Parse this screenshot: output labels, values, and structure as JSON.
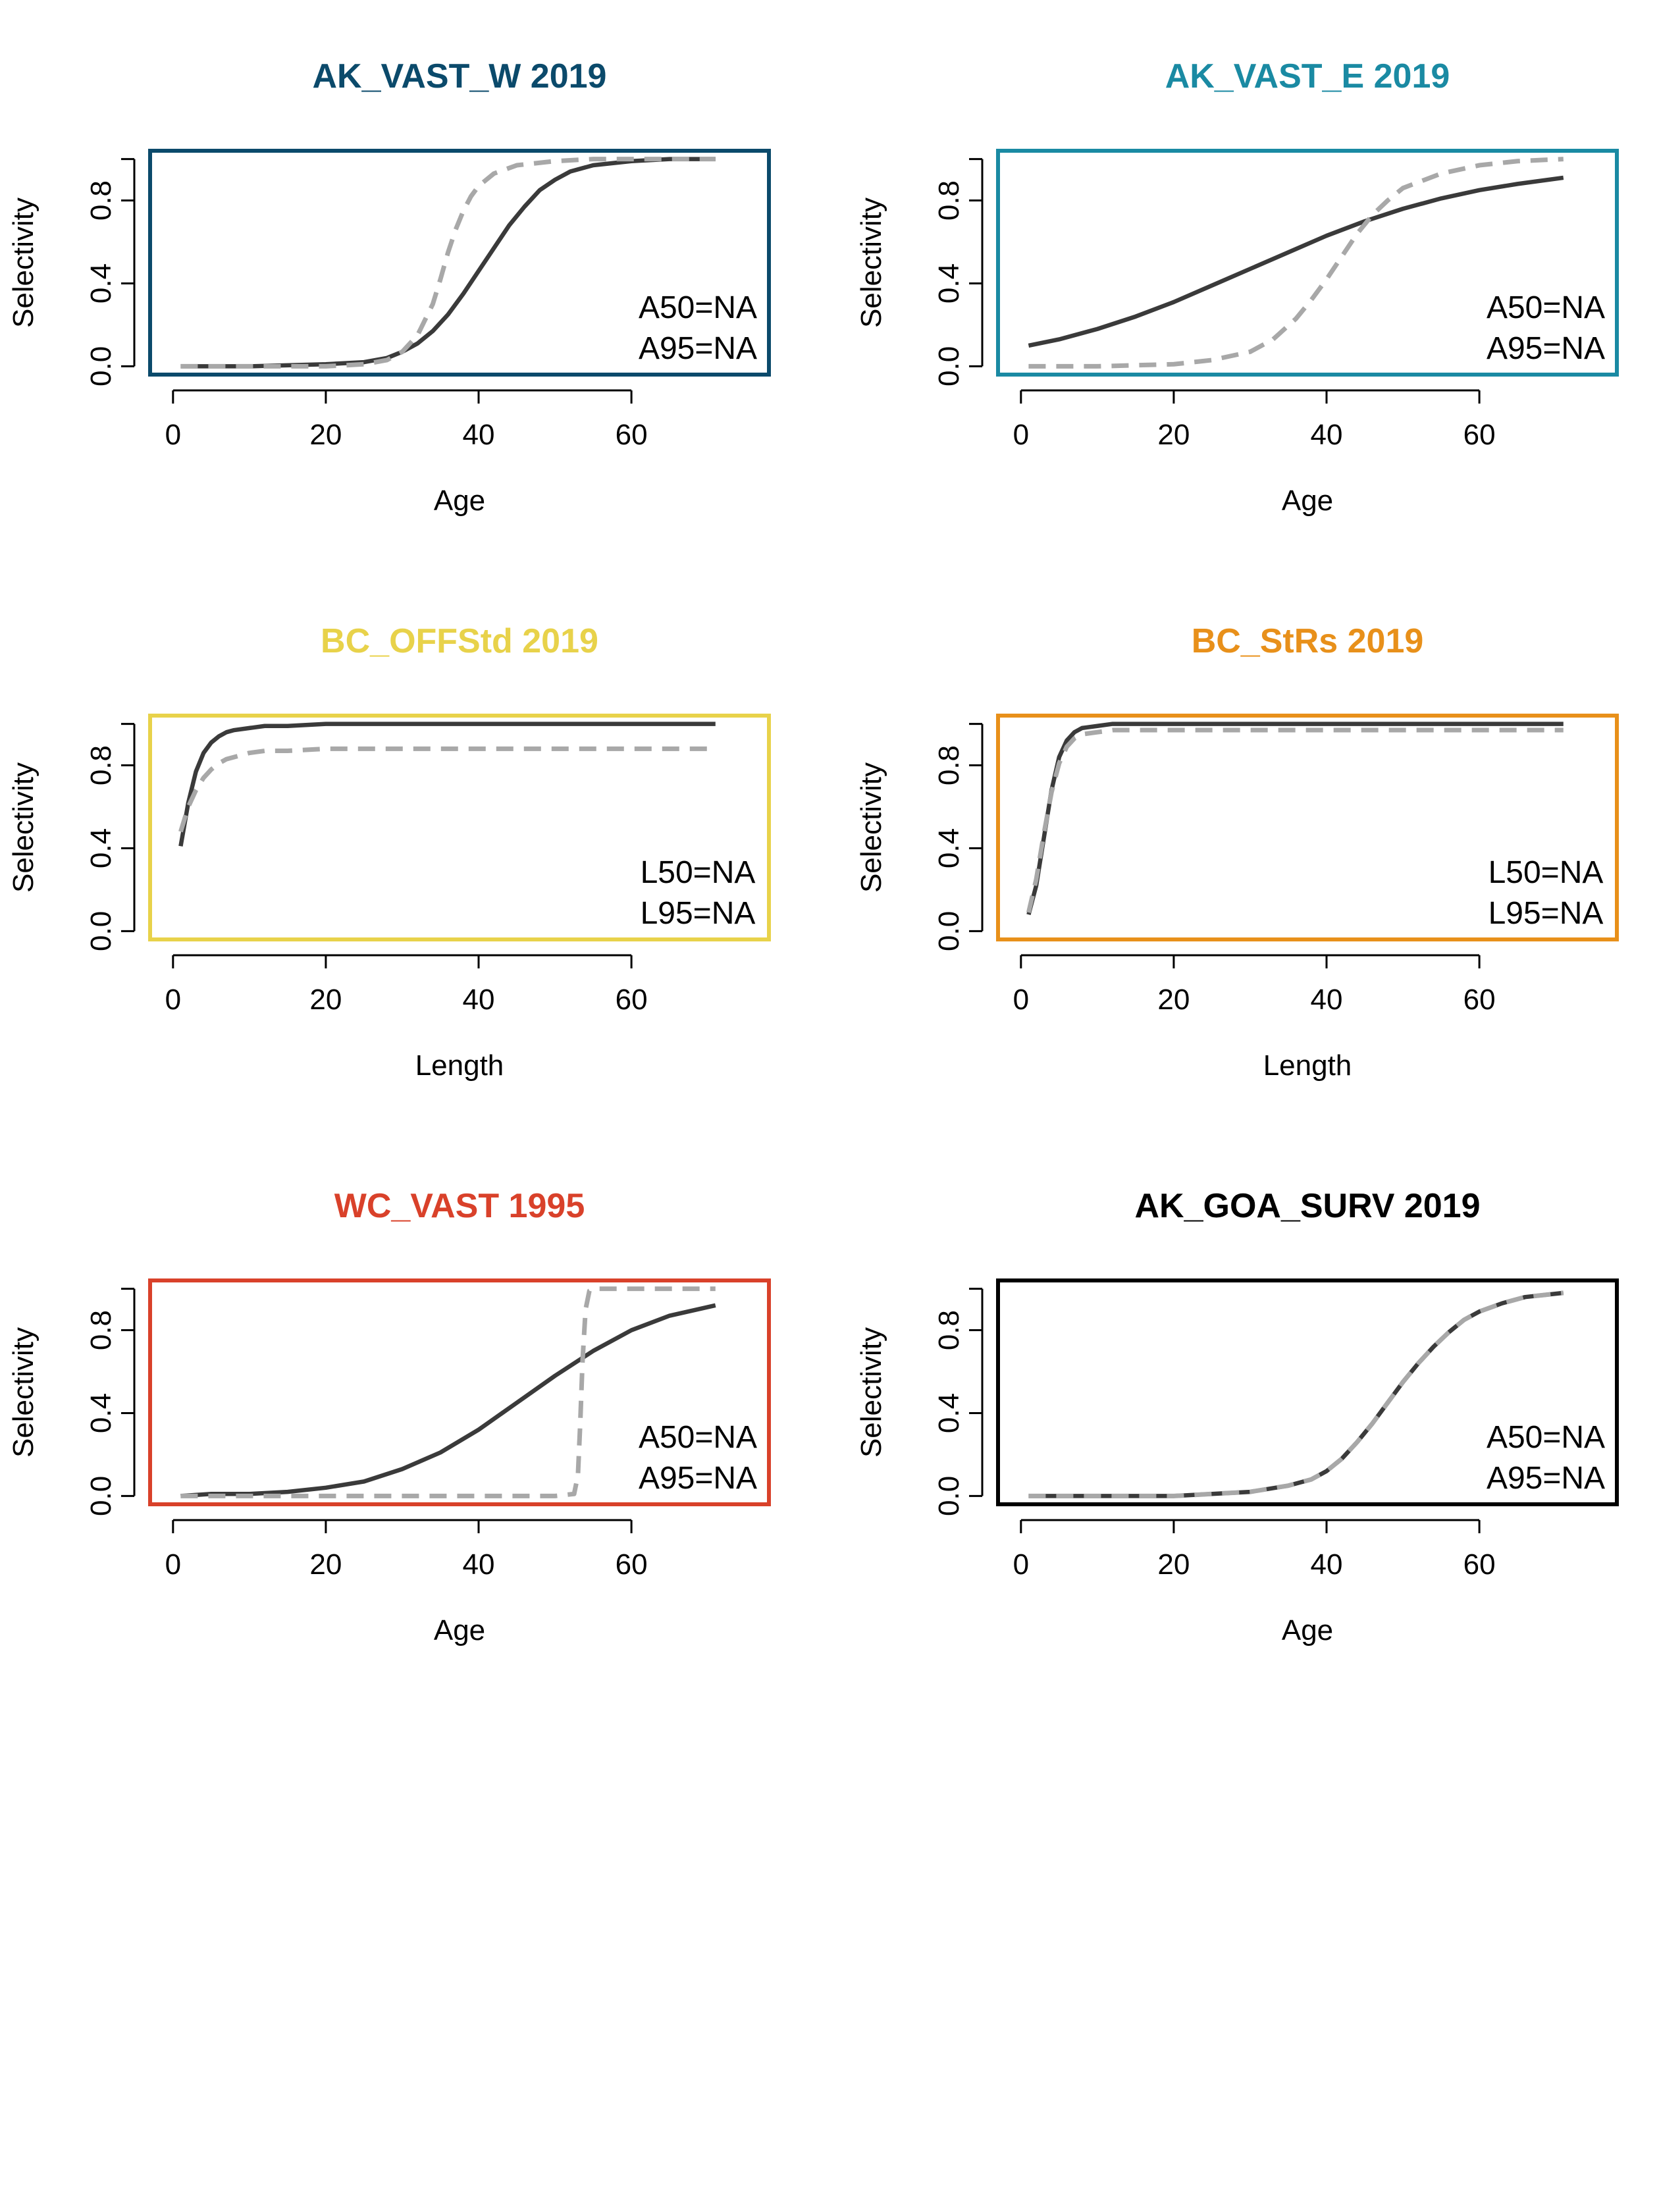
{
  "chart_data": [
    {
      "type": "line",
      "title": "AK_VAST_W 2019",
      "title_color": "#0b4a6b",
      "border_color": "#0b4a6b",
      "xlabel": "Age",
      "ylabel": "Selectivity",
      "xlim": [
        -3,
        78
      ],
      "ylim": [
        -0.04,
        1.04
      ],
      "xticks": [
        0,
        20,
        40,
        60
      ],
      "yticks": [
        0.0,
        0.4,
        0.8
      ],
      "xtick_labels": [
        "0",
        "20",
        "40",
        "60"
      ],
      "ytick_labels": [
        "0.0",
        "0.4",
        "0.8"
      ],
      "annotations": [
        "A50=NA",
        "A95=NA"
      ],
      "series": [
        {
          "style": "solid",
          "color": "#3a3a3a",
          "x": [
            1,
            10,
            20,
            25,
            28,
            30,
            32,
            34,
            36,
            38,
            40,
            42,
            44,
            46,
            48,
            50,
            52,
            55,
            60,
            65,
            71
          ],
          "y": [
            0.0,
            0.0,
            0.01,
            0.02,
            0.04,
            0.07,
            0.11,
            0.17,
            0.25,
            0.35,
            0.46,
            0.57,
            0.68,
            0.77,
            0.85,
            0.9,
            0.94,
            0.97,
            0.99,
            1.0,
            1.0
          ]
        },
        {
          "style": "dashed",
          "color": "#a8a8a8",
          "x": [
            1,
            10,
            20,
            25,
            28,
            30,
            32,
            34,
            35,
            36,
            37,
            38,
            39,
            40,
            42,
            45,
            50,
            55,
            60,
            71
          ],
          "y": [
            0.0,
            0.0,
            0.0,
            0.01,
            0.03,
            0.07,
            0.15,
            0.3,
            0.42,
            0.55,
            0.66,
            0.75,
            0.82,
            0.87,
            0.93,
            0.97,
            0.99,
            1.0,
            1.0,
            1.0
          ]
        }
      ]
    },
    {
      "type": "line",
      "title": "AK_VAST_E 2019",
      "title_color": "#1a8aa3",
      "border_color": "#1a8aa3",
      "xlabel": "Age",
      "ylabel": "Selectivity",
      "xlim": [
        -3,
        78
      ],
      "ylim": [
        -0.04,
        1.04
      ],
      "xticks": [
        0,
        20,
        40,
        60
      ],
      "yticks": [
        0.0,
        0.4,
        0.8
      ],
      "xtick_labels": [
        "0",
        "20",
        "40",
        "60"
      ],
      "ytick_labels": [
        "0.0",
        "0.4",
        "0.8"
      ],
      "annotations": [
        "A50=NA",
        "A95=NA"
      ],
      "series": [
        {
          "style": "solid",
          "color": "#3a3a3a",
          "x": [
            1,
            5,
            10,
            15,
            20,
            25,
            30,
            35,
            40,
            45,
            50,
            55,
            60,
            65,
            71
          ],
          "y": [
            0.1,
            0.13,
            0.18,
            0.24,
            0.31,
            0.39,
            0.47,
            0.55,
            0.63,
            0.7,
            0.76,
            0.81,
            0.85,
            0.88,
            0.91
          ]
        },
        {
          "style": "dashed",
          "color": "#a8a8a8",
          "x": [
            1,
            10,
            20,
            25,
            30,
            33,
            36,
            38,
            40,
            42,
            44,
            46,
            48,
            50,
            55,
            60,
            65,
            71
          ],
          "y": [
            0.0,
            0.0,
            0.01,
            0.03,
            0.07,
            0.13,
            0.23,
            0.32,
            0.42,
            0.53,
            0.64,
            0.73,
            0.8,
            0.86,
            0.93,
            0.97,
            0.99,
            1.0
          ]
        }
      ]
    },
    {
      "type": "line",
      "title": "BC_OFFStd 2019",
      "title_color": "#e8d24a",
      "border_color": "#e8d24a",
      "xlabel": "Length",
      "ylabel": "Selectivity",
      "xlim": [
        -3,
        78
      ],
      "ylim": [
        -0.04,
        1.04
      ],
      "xticks": [
        0,
        20,
        40,
        60
      ],
      "yticks": [
        0.0,
        0.4,
        0.8
      ],
      "xtick_labels": [
        "0",
        "20",
        "40",
        "60"
      ],
      "ytick_labels": [
        "0.0",
        "0.4",
        "0.8"
      ],
      "annotations": [
        "L50=NA",
        "L95=NA"
      ],
      "series": [
        {
          "style": "solid",
          "color": "#3a3a3a",
          "x": [
            1,
            2,
            3,
            4,
            5,
            6,
            7,
            8,
            10,
            12,
            15,
            20,
            30,
            40,
            50,
            60,
            71
          ],
          "y": [
            0.41,
            0.62,
            0.77,
            0.86,
            0.91,
            0.94,
            0.96,
            0.97,
            0.98,
            0.99,
            0.99,
            1.0,
            1.0,
            1.0,
            1.0,
            1.0,
            1.0
          ]
        },
        {
          "style": "dashed",
          "color": "#a8a8a8",
          "x": [
            1,
            2,
            3,
            4,
            5,
            6,
            7,
            8,
            10,
            12,
            15,
            20,
            30,
            40,
            50,
            60,
            71
          ],
          "y": [
            0.48,
            0.6,
            0.68,
            0.74,
            0.78,
            0.81,
            0.83,
            0.84,
            0.86,
            0.87,
            0.87,
            0.88,
            0.88,
            0.88,
            0.88,
            0.88,
            0.88
          ]
        }
      ]
    },
    {
      "type": "line",
      "title": "BC_StRs 2019",
      "title_color": "#e8901a",
      "border_color": "#e8901a",
      "xlabel": "Length",
      "ylabel": "Selectivity",
      "xlim": [
        -3,
        78
      ],
      "ylim": [
        -0.04,
        1.04
      ],
      "xticks": [
        0,
        20,
        40,
        60
      ],
      "yticks": [
        0.0,
        0.4,
        0.8
      ],
      "xtick_labels": [
        "0",
        "20",
        "40",
        "60"
      ],
      "ytick_labels": [
        "0.0",
        "0.4",
        "0.8"
      ],
      "annotations": [
        "L50=NA",
        "L95=NA"
      ],
      "series": [
        {
          "style": "solid",
          "color": "#3a3a3a",
          "x": [
            1,
            2,
            3,
            4,
            5,
            6,
            7,
            8,
            10,
            12,
            15,
            20,
            30,
            40,
            50,
            60,
            71
          ],
          "y": [
            0.08,
            0.22,
            0.45,
            0.68,
            0.84,
            0.92,
            0.96,
            0.98,
            0.99,
            1.0,
            1.0,
            1.0,
            1.0,
            1.0,
            1.0,
            1.0,
            1.0
          ]
        },
        {
          "style": "dashed",
          "color": "#a8a8a8",
          "x": [
            1,
            2,
            3,
            4,
            5,
            6,
            7,
            8,
            10,
            12,
            15,
            20,
            30,
            40,
            50,
            60,
            71
          ],
          "y": [
            0.09,
            0.25,
            0.47,
            0.67,
            0.81,
            0.89,
            0.93,
            0.95,
            0.96,
            0.97,
            0.97,
            0.97,
            0.97,
            0.97,
            0.97,
            0.97,
            0.97
          ]
        }
      ]
    },
    {
      "type": "line",
      "title": "WC_VAST 1995",
      "title_color": "#d9412a",
      "border_color": "#d9412a",
      "xlabel": "Age",
      "ylabel": "Selectivity",
      "xlim": [
        -3,
        78
      ],
      "ylim": [
        -0.04,
        1.04
      ],
      "xticks": [
        0,
        20,
        40,
        60
      ],
      "yticks": [
        0.0,
        0.4,
        0.8
      ],
      "xtick_labels": [
        "0",
        "20",
        "40",
        "60"
      ],
      "ytick_labels": [
        "0.0",
        "0.4",
        "0.8"
      ],
      "annotations": [
        "A50=NA",
        "A95=NA"
      ],
      "series": [
        {
          "style": "solid",
          "color": "#3a3a3a",
          "x": [
            1,
            5,
            10,
            15,
            20,
            25,
            30,
            35,
            40,
            45,
            50,
            55,
            60,
            65,
            71
          ],
          "y": [
            0.0,
            0.01,
            0.01,
            0.02,
            0.04,
            0.07,
            0.13,
            0.21,
            0.32,
            0.45,
            0.58,
            0.7,
            0.8,
            0.87,
            0.92
          ]
        },
        {
          "style": "dashed",
          "color": "#a8a8a8",
          "x": [
            1,
            10,
            20,
            30,
            40,
            50,
            52.5,
            53,
            53.3,
            53.6,
            54,
            54.5,
            55,
            60,
            65,
            71
          ],
          "y": [
            0.0,
            0.0,
            0.0,
            0.0,
            0.0,
            0.0,
            0.01,
            0.1,
            0.35,
            0.65,
            0.9,
            0.99,
            1.0,
            1.0,
            1.0,
            1.0
          ]
        }
      ]
    },
    {
      "type": "line",
      "title": "AK_GOA_SURV 2019",
      "title_color": "#000000",
      "border_color": "#000000",
      "xlabel": "Age",
      "ylabel": "Selectivity",
      "xlim": [
        -3,
        78
      ],
      "ylim": [
        -0.04,
        1.04
      ],
      "xticks": [
        0,
        20,
        40,
        60
      ],
      "yticks": [
        0.0,
        0.4,
        0.8
      ],
      "xtick_labels": [
        "0",
        "20",
        "40",
        "60"
      ],
      "ytick_labels": [
        "0.0",
        "0.4",
        "0.8"
      ],
      "annotations": [
        "A50=NA",
        "A95=NA"
      ],
      "series": [
        {
          "style": "solid",
          "color": "#3a3a3a",
          "x": [
            1,
            10,
            20,
            25,
            30,
            35,
            38,
            40,
            42,
            44,
            46,
            48,
            50,
            52,
            54,
            56,
            58,
            60,
            63,
            66,
            71
          ],
          "y": [
            0.0,
            0.0,
            0.0,
            0.01,
            0.02,
            0.05,
            0.08,
            0.12,
            0.18,
            0.26,
            0.35,
            0.45,
            0.55,
            0.64,
            0.72,
            0.79,
            0.85,
            0.89,
            0.93,
            0.96,
            0.98
          ]
        },
        {
          "style": "dashed",
          "color": "#a8a8a8",
          "x": [
            1,
            10,
            20,
            25,
            30,
            35,
            38,
            40,
            42,
            44,
            46,
            48,
            50,
            52,
            54,
            56,
            58,
            60,
            63,
            66,
            71
          ],
          "y": [
            0.0,
            0.0,
            0.0,
            0.01,
            0.02,
            0.05,
            0.08,
            0.12,
            0.18,
            0.26,
            0.35,
            0.45,
            0.55,
            0.64,
            0.72,
            0.79,
            0.85,
            0.89,
            0.93,
            0.96,
            0.98
          ]
        }
      ]
    }
  ]
}
